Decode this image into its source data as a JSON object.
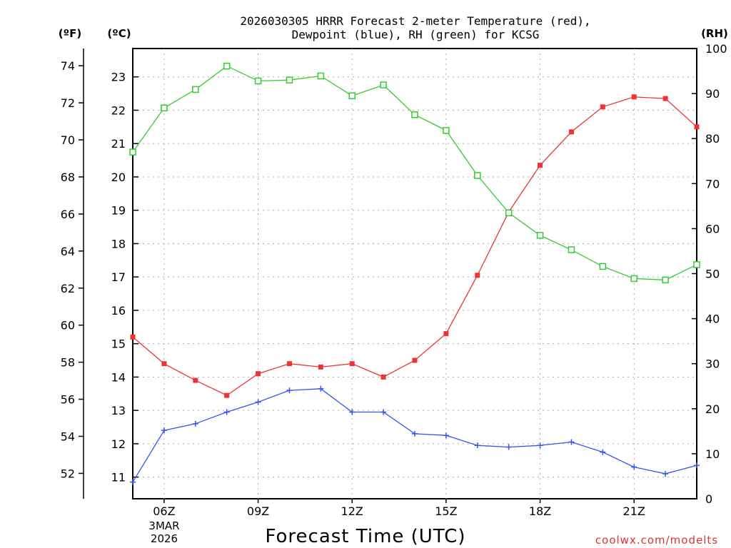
{
  "chart_data": {
    "type": "line",
    "title_line1": "2026030305 HRRR Forecast 2-meter Temperature (red),",
    "title_line2": "Dewpoint (blue), RH (green) for KCSG",
    "xlabel": "Forecast Time (UTC)",
    "credit": "coolwx.com/modelts",
    "unit_f": "(ºF)",
    "unit_c": "(ºC)",
    "unit_rh": "(RH)",
    "date_line1": "3MAR",
    "date_line2": "2026",
    "x": [
      5,
      6,
      7,
      8,
      9,
      10,
      11,
      12,
      13,
      14,
      15,
      16,
      17,
      18,
      19,
      20,
      21,
      22,
      23
    ],
    "xlim": [
      5,
      23
    ],
    "x_ticks": [
      {
        "x": 6,
        "label": "06Z"
      },
      {
        "x": 9,
        "label": "09Z"
      },
      {
        "x": 12,
        "label": "12Z"
      },
      {
        "x": 15,
        "label": "15Z"
      },
      {
        "x": 18,
        "label": "18Z"
      },
      {
        "x": 21,
        "label": "21Z"
      }
    ],
    "c_ylim": [
      10.35,
      23.85
    ],
    "c_ticks": [
      11,
      12,
      13,
      14,
      15,
      16,
      17,
      18,
      19,
      20,
      21,
      22,
      23
    ],
    "f_ticks": [
      52,
      54,
      56,
      58,
      60,
      62,
      64,
      66,
      68,
      70,
      72,
      74
    ],
    "rh_ylim": [
      0,
      100
    ],
    "rh_ticks": [
      0,
      10,
      20,
      30,
      40,
      50,
      60,
      70,
      80,
      90,
      100
    ],
    "series": [
      {
        "name": "Temperature",
        "unit": "C",
        "color": "#ee3333",
        "marker": "filled-square",
        "values": [
          15.2,
          14.4,
          13.9,
          13.45,
          14.1,
          14.4,
          14.3,
          14.4,
          14.0,
          14.5,
          15.3,
          17.05,
          18.95,
          20.35,
          21.35,
          22.1,
          22.4,
          22.35,
          21.5
        ]
      },
      {
        "name": "Dewpoint",
        "unit": "C",
        "color": "#3355ee",
        "marker": "plus",
        "values": [
          10.85,
          12.4,
          12.6,
          12.95,
          13.25,
          13.6,
          13.65,
          12.95,
          12.95,
          12.3,
          12.25,
          11.95,
          11.9,
          11.95,
          12.05,
          11.75,
          11.3,
          11.1,
          11.35
        ]
      },
      {
        "name": "RH",
        "unit": "%",
        "color": "#33cc33",
        "marker": "open-square",
        "values": [
          77.0,
          86.8,
          90.9,
          96.1,
          92.8,
          93.0,
          93.9,
          89.5,
          91.9,
          85.3,
          81.8,
          71.8,
          63.5,
          58.5,
          55.3,
          51.6,
          48.9,
          48.6,
          52.0
        ]
      }
    ]
  }
}
